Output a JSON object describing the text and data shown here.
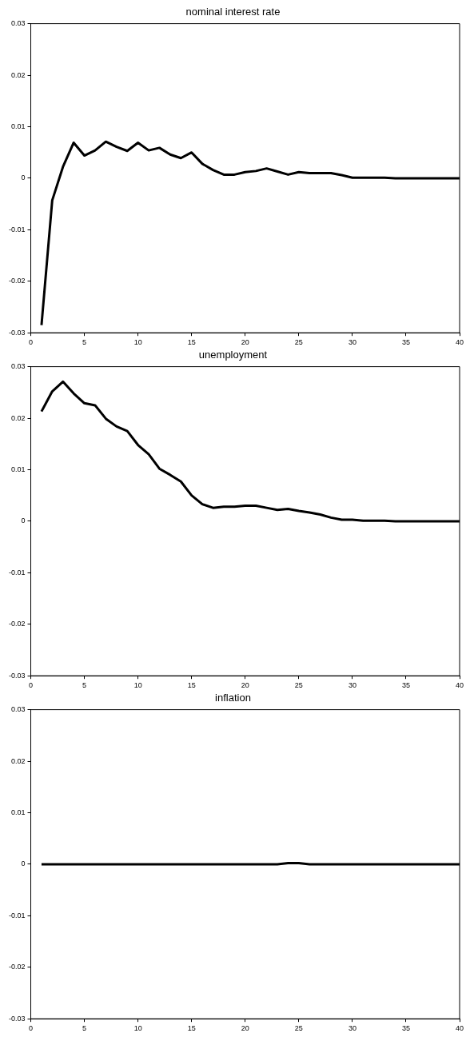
{
  "chart_data": [
    {
      "type": "line",
      "title": "nominal interest rate",
      "x": [
        1,
        2,
        3,
        4,
        5,
        6,
        7,
        8,
        9,
        10,
        11,
        12,
        13,
        14,
        15,
        16,
        17,
        18,
        19,
        20,
        21,
        22,
        23,
        24,
        25,
        26,
        27,
        28,
        29,
        30,
        31,
        32,
        33,
        34,
        35,
        36,
        37,
        38,
        39,
        40
      ],
      "values": [
        -0.0285,
        -0.0043,
        0.0022,
        0.0069,
        0.0044,
        0.0054,
        0.0071,
        0.0061,
        0.0053,
        0.0069,
        0.0054,
        0.0059,
        0.0046,
        0.0039,
        0.005,
        0.0028,
        0.0016,
        0.0007,
        0.0007,
        0.0012,
        0.0014,
        0.0019,
        0.0013,
        0.0007,
        0.0012,
        0.001,
        0.001,
        0.001,
        0.0006,
        0.0001,
        0.0001,
        0.0001,
        0.0001,
        0,
        0,
        0,
        0,
        0,
        0,
        0
      ],
      "color": "#000000",
      "xlim": [
        0,
        40
      ],
      "xticks": [
        0,
        5,
        10,
        15,
        20,
        25,
        30,
        35,
        40
      ],
      "ylim": [
        -0.03,
        0.03
      ],
      "yticks": [
        -0.03,
        -0.02,
        -0.01,
        0,
        0.01,
        0.02,
        0.03
      ]
    },
    {
      "type": "line",
      "title": "unemployment",
      "x": [
        1,
        2,
        3,
        4,
        5,
        6,
        7,
        8,
        9,
        10,
        11,
        12,
        13,
        14,
        15,
        16,
        17,
        18,
        19,
        20,
        21,
        22,
        23,
        24,
        25,
        26,
        27,
        28,
        29,
        30,
        31,
        32,
        33,
        34,
        35,
        36,
        37,
        38,
        39,
        40
      ],
      "values": [
        0.0213,
        0.0252,
        0.0271,
        0.0248,
        0.0229,
        0.0225,
        0.0199,
        0.0184,
        0.0175,
        0.0148,
        0.013,
        0.0102,
        0.009,
        0.0077,
        0.005,
        0.0033,
        0.0026,
        0.0028,
        0.0028,
        0.003,
        0.003,
        0.0026,
        0.0022,
        0.0024,
        0.002,
        0.0017,
        0.0013,
        0.0007,
        0.0003,
        0.0003,
        0.0001,
        0.0001,
        0.0001,
        0,
        0,
        0,
        0,
        0,
        0,
        0
      ],
      "color": "#000000",
      "xlim": [
        0,
        40
      ],
      "xticks": [
        0,
        5,
        10,
        15,
        20,
        25,
        30,
        35,
        40
      ],
      "ylim": [
        -0.03,
        0.03
      ],
      "yticks": [
        -0.03,
        -0.02,
        -0.01,
        0,
        0.01,
        0.02,
        0.03
      ]
    },
    {
      "type": "line",
      "title": "inflation",
      "x": [
        1,
        2,
        3,
        4,
        5,
        6,
        7,
        8,
        9,
        10,
        11,
        12,
        13,
        14,
        15,
        16,
        17,
        18,
        19,
        20,
        21,
        22,
        23,
        24,
        25,
        26,
        27,
        28,
        29,
        30,
        31,
        32,
        33,
        34,
        35,
        36,
        37,
        38,
        39,
        40
      ],
      "values": [
        0,
        0,
        0,
        0,
        0,
        0,
        0,
        0,
        0,
        0,
        0,
        0,
        0,
        0,
        0,
        0,
        0,
        0,
        0,
        0,
        0,
        0,
        0,
        0.0002,
        0.0002,
        0,
        0,
        0,
        0,
        0,
        0,
        0,
        0,
        0,
        0,
        0,
        0,
        0,
        0,
        0
      ],
      "color": "#000000",
      "xlim": [
        0,
        40
      ],
      "xticks": [
        0,
        5,
        10,
        15,
        20,
        25,
        30,
        35,
        40
      ],
      "ylim": [
        -0.03,
        0.03
      ],
      "yticks": [
        -0.03,
        -0.02,
        -0.01,
        0,
        0.01,
        0.02,
        0.03
      ]
    }
  ]
}
